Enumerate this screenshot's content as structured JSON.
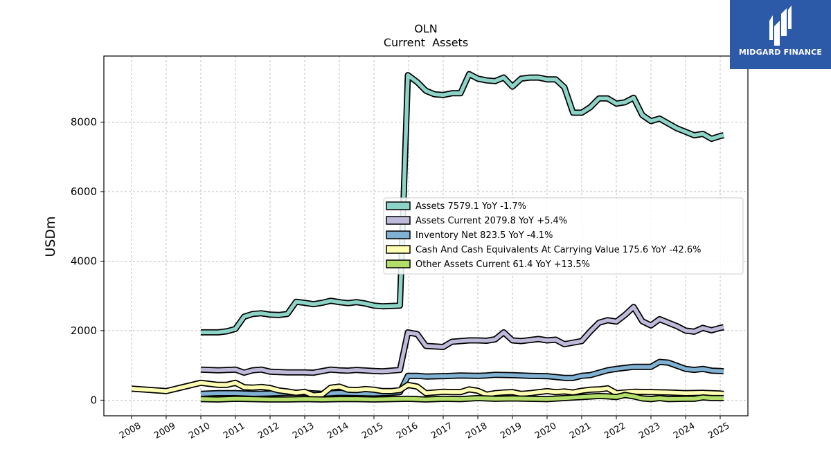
{
  "brand": {
    "name": "MIDGARD FINANCE",
    "bg_color": "#2c5aa8",
    "mark_icon": "midgard-logo-icon"
  },
  "chart_data": {
    "type": "line",
    "title": "OLN",
    "subtitle": "Current  Assets",
    "ylabel": "USDm",
    "xlabel": "",
    "x_ticks": [
      "2008",
      "2009",
      "2010",
      "2011",
      "2012",
      "2013",
      "2014",
      "2015",
      "2016",
      "2017",
      "2018",
      "2019",
      "2020",
      "2021",
      "2022",
      "2023",
      "2024",
      "2025"
    ],
    "y_ticks": [
      0,
      2000,
      4000,
      6000,
      8000
    ],
    "xlim": [
      2007.2,
      2025.8
    ],
    "ylim": [
      -450,
      9900
    ],
    "grid": true,
    "legend_position": "center-right",
    "series": [
      {
        "name": "Assets  7579.1 YoY -1.7%",
        "color": "#8dd3c7",
        "points": [
          [
            2010.0,
            1950
          ],
          [
            2010.5,
            1950
          ],
          [
            2010.75,
            1980
          ],
          [
            2011.0,
            2050
          ],
          [
            2011.25,
            2400
          ],
          [
            2011.5,
            2480
          ],
          [
            2011.75,
            2500
          ],
          [
            2012.0,
            2460
          ],
          [
            2012.25,
            2450
          ],
          [
            2012.5,
            2480
          ],
          [
            2012.75,
            2830
          ],
          [
            2013.0,
            2800
          ],
          [
            2013.25,
            2760
          ],
          [
            2013.5,
            2800
          ],
          [
            2013.75,
            2860
          ],
          [
            2014.0,
            2820
          ],
          [
            2014.25,
            2790
          ],
          [
            2014.5,
            2820
          ],
          [
            2014.75,
            2780
          ],
          [
            2015.0,
            2720
          ],
          [
            2015.25,
            2700
          ],
          [
            2015.5,
            2710
          ],
          [
            2015.75,
            2720
          ],
          [
            2015.98,
            9350
          ],
          [
            2016.25,
            9150
          ],
          [
            2016.5,
            8900
          ],
          [
            2016.75,
            8800
          ],
          [
            2017.0,
            8780
          ],
          [
            2017.25,
            8830
          ],
          [
            2017.5,
            8830
          ],
          [
            2017.75,
            9380
          ],
          [
            2018.0,
            9250
          ],
          [
            2018.25,
            9200
          ],
          [
            2018.5,
            9180
          ],
          [
            2018.75,
            9280
          ],
          [
            2019.0,
            9020
          ],
          [
            2019.25,
            9250
          ],
          [
            2019.5,
            9280
          ],
          [
            2019.75,
            9280
          ],
          [
            2020.0,
            9230
          ],
          [
            2020.25,
            9230
          ],
          [
            2020.5,
            9000
          ],
          [
            2020.75,
            8270
          ],
          [
            2021.0,
            8270
          ],
          [
            2021.25,
            8430
          ],
          [
            2021.5,
            8680
          ],
          [
            2021.75,
            8680
          ],
          [
            2022.0,
            8530
          ],
          [
            2022.25,
            8570
          ],
          [
            2022.5,
            8700
          ],
          [
            2022.75,
            8200
          ],
          [
            2023.0,
            8030
          ],
          [
            2023.25,
            8100
          ],
          [
            2023.5,
            7960
          ],
          [
            2023.75,
            7820
          ],
          [
            2024.0,
            7720
          ],
          [
            2024.25,
            7620
          ],
          [
            2024.5,
            7660
          ],
          [
            2024.75,
            7520
          ],
          [
            2025.0,
            7600
          ],
          [
            2025.1,
            7620
          ]
        ]
      },
      {
        "name": "Assets Current  2079.8 YoY +5.4%",
        "color": "#bebada",
        "points": [
          [
            2010.0,
            880
          ],
          [
            2010.5,
            860
          ],
          [
            2011.0,
            880
          ],
          [
            2011.25,
            790
          ],
          [
            2011.5,
            860
          ],
          [
            2011.75,
            880
          ],
          [
            2012.0,
            820
          ],
          [
            2012.5,
            800
          ],
          [
            2013.0,
            800
          ],
          [
            2013.25,
            790
          ],
          [
            2013.75,
            880
          ],
          [
            2014.0,
            860
          ],
          [
            2014.25,
            850
          ],
          [
            2014.5,
            870
          ],
          [
            2015.0,
            840
          ],
          [
            2015.25,
            830
          ],
          [
            2015.5,
            850
          ],
          [
            2015.75,
            870
          ],
          [
            2015.98,
            1950
          ],
          [
            2016.25,
            1900
          ],
          [
            2016.5,
            1560
          ],
          [
            2017.0,
            1530
          ],
          [
            2017.25,
            1680
          ],
          [
            2017.75,
            1720
          ],
          [
            2018.0,
            1720
          ],
          [
            2018.25,
            1710
          ],
          [
            2018.5,
            1750
          ],
          [
            2018.75,
            1950
          ],
          [
            2019.0,
            1720
          ],
          [
            2019.25,
            1700
          ],
          [
            2019.5,
            1730
          ],
          [
            2019.75,
            1760
          ],
          [
            2020.0,
            1720
          ],
          [
            2020.25,
            1740
          ],
          [
            2020.5,
            1610
          ],
          [
            2021.0,
            1700
          ],
          [
            2021.25,
            1980
          ],
          [
            2021.5,
            2230
          ],
          [
            2021.75,
            2300
          ],
          [
            2022.0,
            2260
          ],
          [
            2022.25,
            2450
          ],
          [
            2022.5,
            2680
          ],
          [
            2022.75,
            2270
          ],
          [
            2023.0,
            2150
          ],
          [
            2023.25,
            2330
          ],
          [
            2023.5,
            2230
          ],
          [
            2023.75,
            2130
          ],
          [
            2024.0,
            2000
          ],
          [
            2024.25,
            1970
          ],
          [
            2024.5,
            2080
          ],
          [
            2024.75,
            2010
          ],
          [
            2025.0,
            2080
          ],
          [
            2025.1,
            2100
          ]
        ]
      },
      {
        "name": "Inventory Net  823.5 YoY -4.1%",
        "color": "#80b1d3",
        "points": [
          [
            2010.0,
            180
          ],
          [
            2010.5,
            200
          ],
          [
            2011.0,
            200
          ],
          [
            2011.5,
            180
          ],
          [
            2012.0,
            190
          ],
          [
            2012.5,
            210
          ],
          [
            2013.0,
            210
          ],
          [
            2013.5,
            180
          ],
          [
            2014.0,
            210
          ],
          [
            2014.5,
            200
          ],
          [
            2015.0,
            190
          ],
          [
            2015.5,
            210
          ],
          [
            2015.75,
            230
          ],
          [
            2015.98,
            700
          ],
          [
            2016.25,
            700
          ],
          [
            2016.5,
            680
          ],
          [
            2017.0,
            690
          ],
          [
            2017.5,
            710
          ],
          [
            2018.0,
            700
          ],
          [
            2018.25,
            710
          ],
          [
            2018.5,
            730
          ],
          [
            2019.0,
            720
          ],
          [
            2019.5,
            700
          ],
          [
            2020.0,
            690
          ],
          [
            2020.5,
            640
          ],
          [
            2020.75,
            640
          ],
          [
            2021.0,
            700
          ],
          [
            2021.25,
            720
          ],
          [
            2021.75,
            860
          ],
          [
            2022.0,
            900
          ],
          [
            2022.5,
            960
          ],
          [
            2023.0,
            960
          ],
          [
            2023.25,
            1100
          ],
          [
            2023.5,
            1080
          ],
          [
            2024.0,
            900
          ],
          [
            2024.25,
            870
          ],
          [
            2024.5,
            900
          ],
          [
            2024.75,
            850
          ],
          [
            2025.0,
            840
          ],
          [
            2025.1,
            830
          ]
        ]
      },
      {
        "name": "Cash And Cash Equivalents At Carrying Value  175.6 YoY -42.6%",
        "color": "#ffffb3",
        "points": [
          [
            2008.0,
            330
          ],
          [
            2009.0,
            260
          ],
          [
            2010.0,
            500
          ],
          [
            2010.5,
            440
          ],
          [
            2010.75,
            440
          ],
          [
            2011.0,
            500
          ],
          [
            2011.25,
            370
          ],
          [
            2011.5,
            360
          ],
          [
            2011.75,
            380
          ],
          [
            2012.0,
            350
          ],
          [
            2012.25,
            280
          ],
          [
            2012.5,
            250
          ],
          [
            2012.75,
            210
          ],
          [
            2013.0,
            240
          ],
          [
            2013.25,
            140
          ],
          [
            2013.5,
            160
          ],
          [
            2013.75,
            360
          ],
          [
            2014.0,
            390
          ],
          [
            2014.25,
            300
          ],
          [
            2014.5,
            290
          ],
          [
            2014.75,
            320
          ],
          [
            2015.0,
            300
          ],
          [
            2015.25,
            260
          ],
          [
            2015.5,
            260
          ],
          [
            2015.75,
            290
          ],
          [
            2015.98,
            440
          ],
          [
            2016.25,
            390
          ],
          [
            2016.5,
            200
          ],
          [
            2017.0,
            240
          ],
          [
            2017.25,
            230
          ],
          [
            2017.5,
            230
          ],
          [
            2017.75,
            310
          ],
          [
            2018.0,
            270
          ],
          [
            2018.25,
            160
          ],
          [
            2018.5,
            200
          ],
          [
            2018.75,
            220
          ],
          [
            2019.0,
            230
          ],
          [
            2019.25,
            180
          ],
          [
            2019.5,
            200
          ],
          [
            2019.75,
            230
          ],
          [
            2020.0,
            260
          ],
          [
            2020.25,
            230
          ],
          [
            2020.5,
            250
          ],
          [
            2020.75,
            220
          ],
          [
            2021.0,
            270
          ],
          [
            2021.25,
            300
          ],
          [
            2021.5,
            310
          ],
          [
            2021.75,
            340
          ],
          [
            2022.0,
            200
          ],
          [
            2022.5,
            240
          ],
          [
            2023.0,
            230
          ],
          [
            2023.5,
            220
          ],
          [
            2024.0,
            200
          ],
          [
            2024.5,
            210
          ],
          [
            2025.0,
            190
          ],
          [
            2025.1,
            180
          ]
        ]
      },
      {
        "name": "Other Assets Current  61.4 YoY +13.5%",
        "color": "#b3de69",
        "points": [
          [
            2010.0,
            30
          ],
          [
            2010.5,
            20
          ],
          [
            2011.0,
            40
          ],
          [
            2011.5,
            30
          ],
          [
            2012.0,
            20
          ],
          [
            2012.5,
            20
          ],
          [
            2013.0,
            30
          ],
          [
            2013.5,
            20
          ],
          [
            2014.0,
            30
          ],
          [
            2014.5,
            30
          ],
          [
            2015.0,
            20
          ],
          [
            2015.5,
            30
          ],
          [
            2015.98,
            40
          ],
          [
            2016.5,
            20
          ],
          [
            2017.0,
            40
          ],
          [
            2017.5,
            30
          ],
          [
            2018.0,
            60
          ],
          [
            2018.5,
            40
          ],
          [
            2019.0,
            50
          ],
          [
            2019.5,
            40
          ],
          [
            2020.0,
            30
          ],
          [
            2020.5,
            60
          ],
          [
            2021.0,
            90
          ],
          [
            2021.5,
            120
          ],
          [
            2021.75,
            110
          ],
          [
            2022.0,
            90
          ],
          [
            2022.25,
            150
          ],
          [
            2022.5,
            110
          ],
          [
            2022.75,
            50
          ],
          [
            2023.0,
            30
          ],
          [
            2023.25,
            60
          ],
          [
            2023.5,
            30
          ],
          [
            2024.0,
            40
          ],
          [
            2024.25,
            40
          ],
          [
            2024.5,
            80
          ],
          [
            2024.75,
            60
          ],
          [
            2025.0,
            60
          ],
          [
            2025.1,
            60
          ]
        ]
      }
    ]
  }
}
